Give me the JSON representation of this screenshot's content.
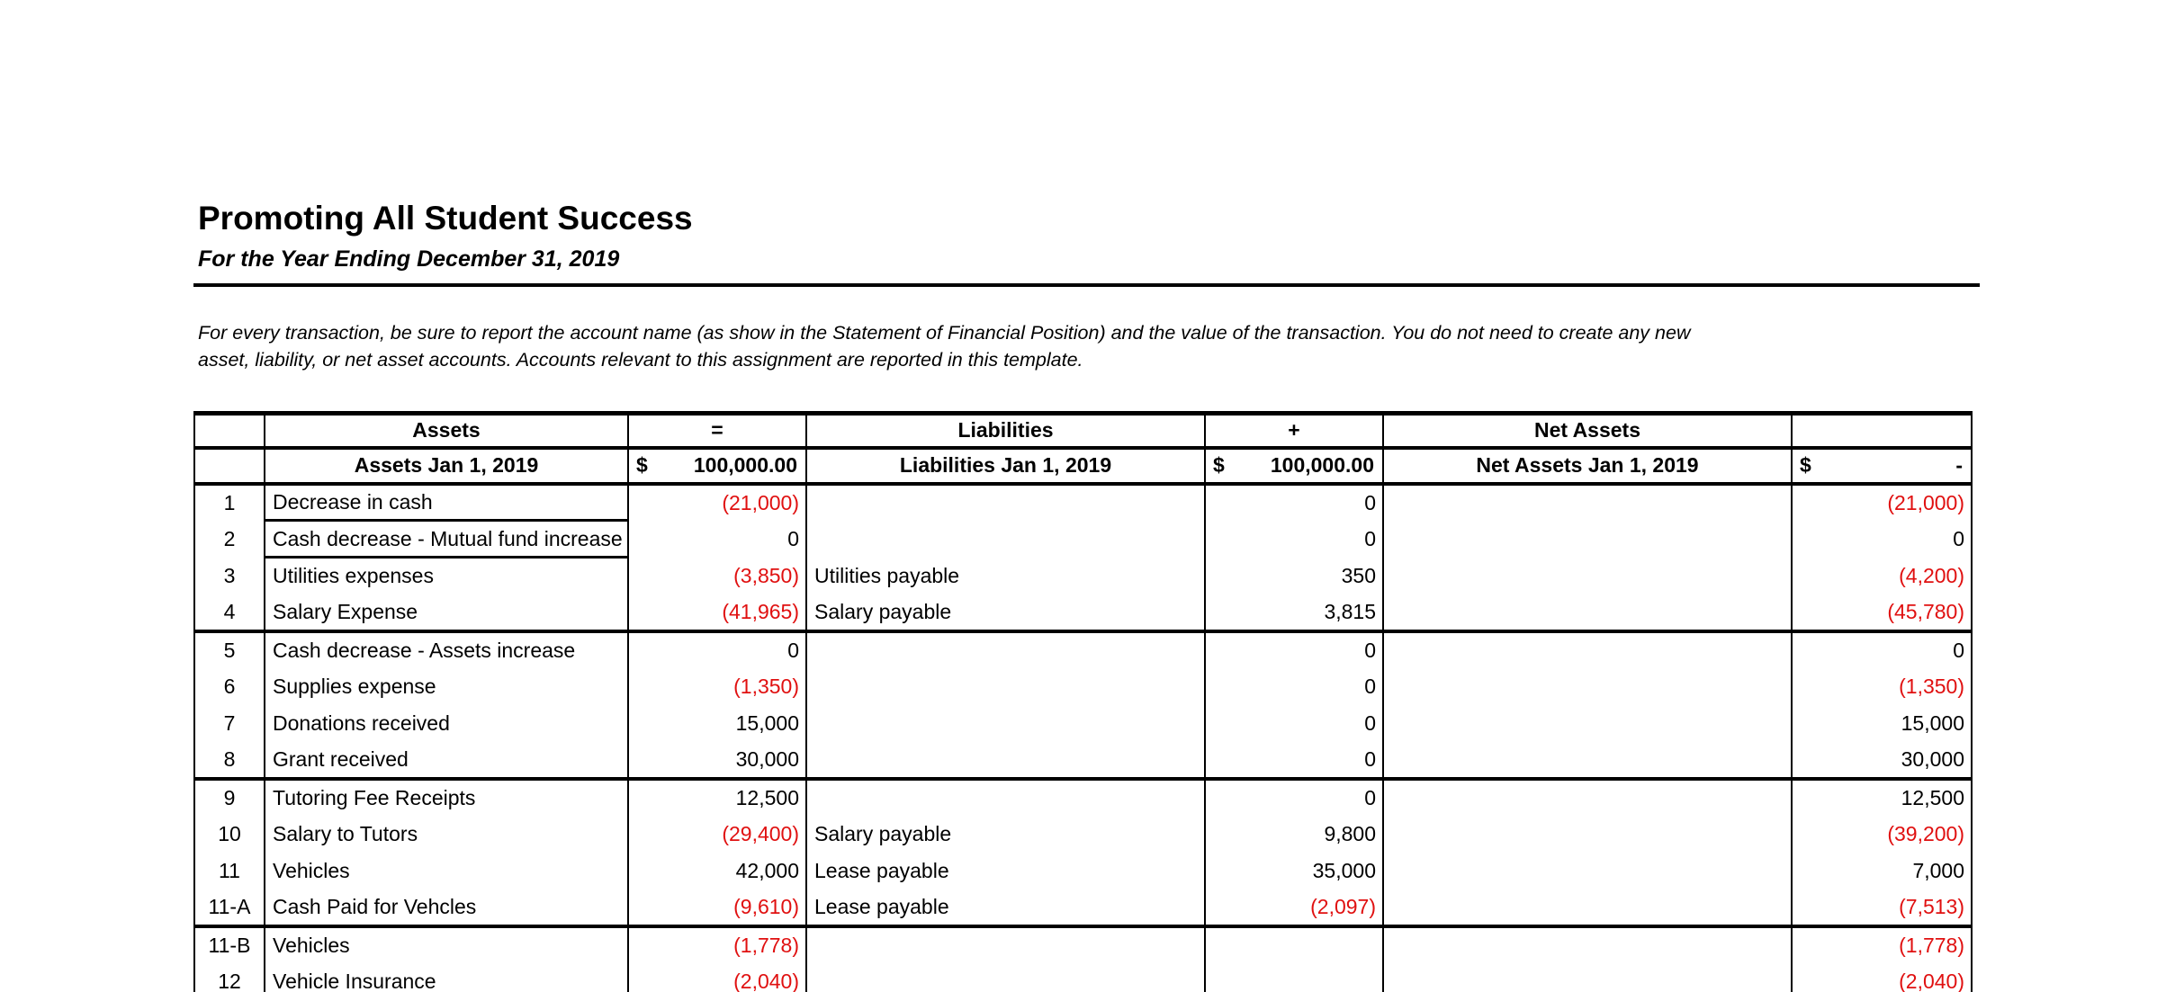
{
  "document": {
    "title": "Promoting All Student Success",
    "subtitle": "For the Year Ending December 31, 2019",
    "instructions_lines": [
      "For every transaction, be sure to report the account name (as show in the Statement of Financial Position) and the value of the transaction. You do not need to create any new",
      "asset, liability, or net asset accounts. Accounts relevant to this assignment are reported in this template."
    ]
  },
  "colors": {
    "negative_value": "#e01010",
    "text": "#000000",
    "border": "#000000"
  },
  "table": {
    "header_row1": {
      "assets": "Assets",
      "equals_operator": "=",
      "liabilities": "Liabilities",
      "plus_operator": "+",
      "net_assets": "Net Assets"
    },
    "header_row2": {
      "assets_label": "Assets Jan 1, 2019",
      "assets_currency": "$",
      "assets_amount": "100,000.00",
      "liabilities_label": "Liabilities Jan 1, 2019",
      "liabilities_currency": "$",
      "liabilities_amount": "100,000.00",
      "net_assets_label": "Net Assets Jan 1, 2019",
      "total_currency": "$",
      "total_amount": "-"
    },
    "rows": [
      {
        "num": "1",
        "asset_account": "Decrease in cash",
        "asset_value": "(21,000)",
        "liability_account": "",
        "liability_value": "0",
        "net_asset_account": "",
        "total_value": "(21,000)",
        "desc_underline": true
      },
      {
        "num": "2",
        "asset_account": "Cash decrease - Mutual fund increase",
        "asset_value": "0",
        "liability_account": "",
        "liability_value": "0",
        "net_asset_account": "",
        "total_value": "0",
        "desc_underline": true
      },
      {
        "num": "3",
        "asset_account": "Utilities expenses",
        "asset_value": "(3,850)",
        "liability_account": "Utilities payable",
        "liability_value": "350",
        "net_asset_account": "",
        "total_value": "(4,200)"
      },
      {
        "num": "4",
        "asset_account": "Salary Expense",
        "asset_value": "(41,965)",
        "liability_account": "Salary payable",
        "liability_value": "3,815",
        "net_asset_account": "",
        "total_value": "(45,780)",
        "group_end": true
      },
      {
        "num": "5",
        "asset_account": "Cash decrease - Assets increase",
        "asset_value": "0",
        "liability_account": "",
        "liability_value": "0",
        "net_asset_account": "",
        "total_value": "0"
      },
      {
        "num": "6",
        "asset_account": "Supplies expense",
        "asset_value": "(1,350)",
        "liability_account": "",
        "liability_value": "0",
        "net_asset_account": "",
        "total_value": "(1,350)"
      },
      {
        "num": "7",
        "asset_account": "Donations received",
        "asset_value": "15,000",
        "liability_account": "",
        "liability_value": "0",
        "net_asset_account": "",
        "total_value": "15,000"
      },
      {
        "num": "8",
        "asset_account": "Grant received",
        "asset_value": "30,000",
        "liability_account": "",
        "liability_value": "0",
        "net_asset_account": "",
        "total_value": "30,000",
        "group_end": true
      },
      {
        "num": "9",
        "asset_account": "Tutoring Fee Receipts",
        "asset_value": "12,500",
        "liability_account": "",
        "liability_value": "0",
        "net_asset_account": "",
        "total_value": "12,500"
      },
      {
        "num": "10",
        "asset_account": "Salary to Tutors",
        "asset_value": "(29,400)",
        "liability_account": "Salary payable",
        "liability_value": "9,800",
        "net_asset_account": "",
        "total_value": "(39,200)"
      },
      {
        "num": "11",
        "asset_account": "Vehicles",
        "asset_value": "42,000",
        "liability_account": "Lease payable",
        "liability_value": "35,000",
        "net_asset_account": "",
        "total_value": "7,000"
      },
      {
        "num": "11-A",
        "asset_account": "Cash Paid for Vehcles",
        "asset_value": "(9,610)",
        "liability_account": "Lease payable",
        "liability_value": "(2,097)",
        "net_asset_account": "",
        "total_value": "(7,513)",
        "group_end": true
      },
      {
        "num": "11-B",
        "asset_account": "Vehicles",
        "asset_value": "(1,778)",
        "liability_account": "",
        "liability_value": "",
        "net_asset_account": "",
        "total_value": "(1,778)"
      },
      {
        "num": "12",
        "asset_account": "Vehicle Insurance",
        "asset_value": "(2,040)",
        "liability_account": "",
        "liability_value": "",
        "net_asset_account": "",
        "total_value": "(2,040)"
      }
    ]
  }
}
